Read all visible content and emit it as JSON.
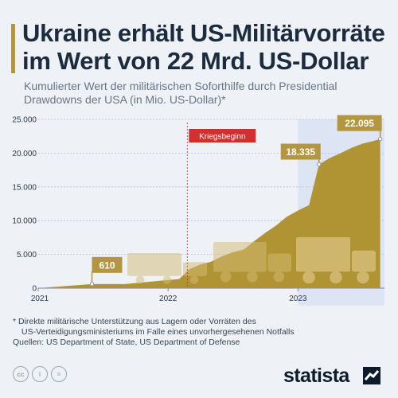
{
  "title": "Ukraine erhält US-Militärvorräte im Wert von 22 Mrd. US-Dollar",
  "subtitle": "Kumulierter Wert der militärischen Soforthilfe durch Presidential Drawdowns der USA (in Mio. US-Dollar)*",
  "colors": {
    "accent": "#b5963a",
    "area": "#b09433",
    "highlight": "#dde4f3",
    "annotation": "#b59640",
    "event": "#d32f2f"
  },
  "chart_data": {
    "type": "area",
    "title": "Ukraine erhält US-Militärvorräte im Wert von 22 Mrd. US-Dollar",
    "xlabel": "",
    "ylabel": "",
    "xlim": [
      "2021-01-01",
      "2023-09-01"
    ],
    "ylim": [
      0,
      25000
    ],
    "y_ticks": [
      "25.000",
      "20.000",
      "15.000",
      "10.000",
      "5.000",
      "0"
    ],
    "x_ticks": [
      {
        "label": "2021",
        "date": "2021-01-01"
      },
      {
        "label": "2022",
        "date": "2022-01-01"
      },
      {
        "label": "2023",
        "date": "2023-01-01"
      }
    ],
    "grid": "horizontal dotted",
    "series": [
      {
        "x": [
          "2021-01-01",
          "2021-06-01",
          "2021-09-01",
          "2022-02-01",
          "2022-03-01",
          "2022-04-01",
          "2022-05-01",
          "2022-06-01",
          "2022-07-01",
          "2022-08-01",
          "2022-09-01",
          "2022-10-01",
          "2022-11-01",
          "2022-12-01",
          "2023-01-01",
          "2023-02-01",
          "2023-03-01",
          "2023-04-01",
          "2023-05-01",
          "2023-06-01",
          "2023-07-01",
          "2023-08-01",
          "2023-08-20"
        ],
        "values": [
          0,
          610,
          610,
          1350,
          2800,
          3500,
          3900,
          4700,
          5300,
          5700,
          7000,
          8200,
          9300,
          10600,
          11500,
          12300,
          18335,
          19300,
          20000,
          20800,
          21400,
          21800,
          22095
        ]
      }
    ],
    "annotations": [
      {
        "label": "610",
        "x": "2021-06-01",
        "y": 610
      },
      {
        "label": "18.335",
        "x": "2023-03-01",
        "y": 18335
      },
      {
        "label": "22.095",
        "x": "2023-08-20",
        "y": 22095
      }
    ],
    "event_marker": {
      "label": "Kriegsbeginn",
      "x": "2022-02-24"
    },
    "highlight_range": [
      "2023-01-01",
      "2023-09-01"
    ]
  },
  "footnote": {
    "line1": "* Direkte militärische Unterstützung aus Lagern oder Vorräten des",
    "line2": "US-Verteidigungsministeriums im Falle eines unvorhergesehenen Notfalls",
    "sources": "Quellen: US Department of State, US Department of Defense"
  },
  "license_icons": [
    "cc",
    "i",
    "="
  ],
  "brand": "statista"
}
